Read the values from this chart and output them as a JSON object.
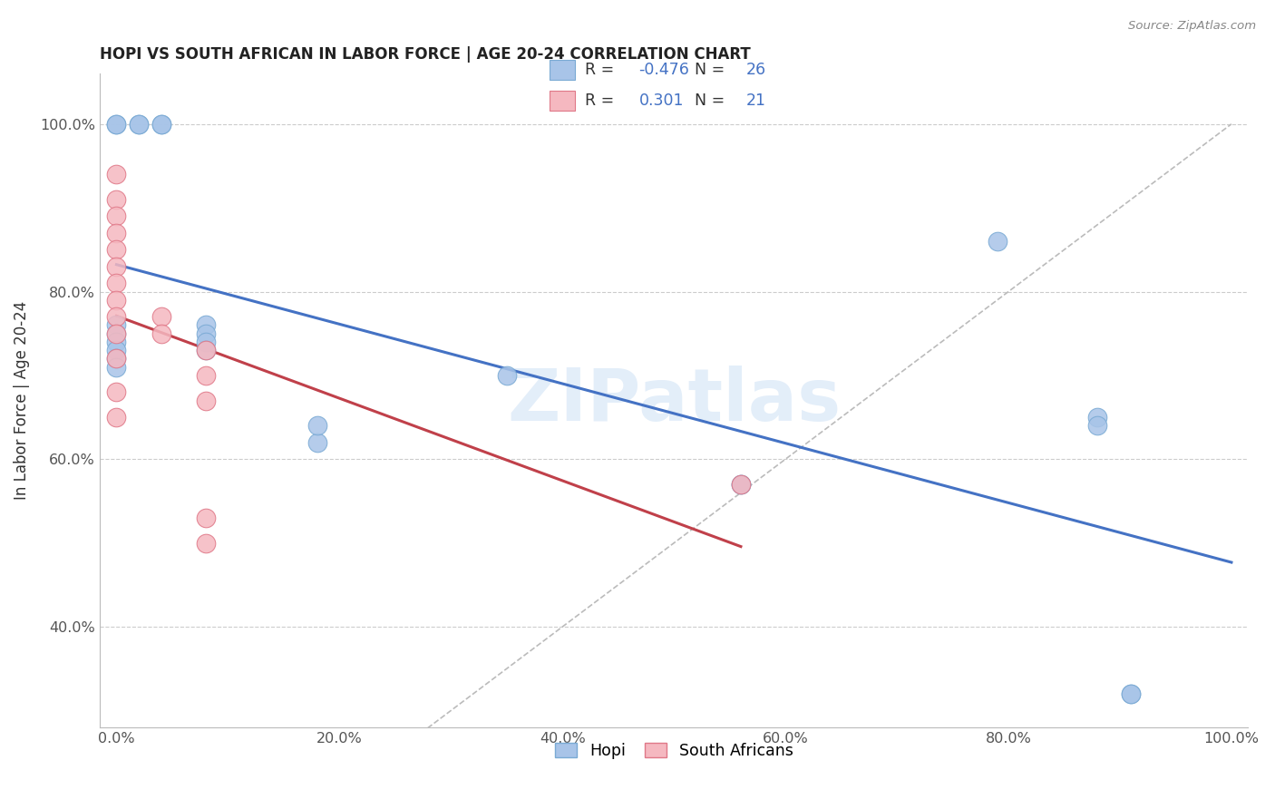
{
  "title": "HOPI VS SOUTH AFRICAN IN LABOR FORCE | AGE 20-24 CORRELATION CHART",
  "source": "Source: ZipAtlas.com",
  "ylabel": "In Labor Force | Age 20-24",
  "xlim": [
    -0.015,
    1.015
  ],
  "ylim": [
    0.28,
    1.06
  ],
  "xticks": [
    0.0,
    0.1,
    0.2,
    0.3,
    0.4,
    0.5,
    0.6,
    0.7,
    0.8,
    0.9,
    1.0
  ],
  "yticks": [
    0.4,
    0.6,
    0.8,
    1.0
  ],
  "xtick_labels": [
    "0.0%",
    "",
    "20.0%",
    "",
    "40.0%",
    "",
    "60.0%",
    "",
    "80.0%",
    "",
    "100.0%"
  ],
  "ytick_labels": [
    "40.0%",
    "60.0%",
    "80.0%",
    "100.0%"
  ],
  "hopi_color": "#a8c4e8",
  "sa_color": "#f5b8c0",
  "hopi_edge": "#7aaad4",
  "sa_edge": "#e07888",
  "trend_hopi_color": "#4472c4",
  "trend_sa_color": "#c0404a",
  "hopi_R": "-0.476",
  "hopi_N": "26",
  "sa_R": "0.301",
  "sa_N": "21",
  "hopi_x": [
    0.0,
    0.0,
    0.02,
    0.02,
    0.04,
    0.04,
    0.08,
    0.08,
    0.08,
    0.08,
    0.0,
    0.0,
    0.0,
    0.0,
    0.0,
    0.0,
    0.56,
    0.56,
    0.79,
    0.88,
    0.88,
    0.91,
    0.91,
    0.35,
    0.18,
    0.18
  ],
  "hopi_y": [
    1.0,
    1.0,
    1.0,
    1.0,
    1.0,
    1.0,
    0.76,
    0.75,
    0.74,
    0.73,
    0.76,
    0.75,
    0.74,
    0.73,
    0.72,
    0.71,
    0.57,
    0.57,
    0.86,
    0.65,
    0.64,
    0.32,
    0.32,
    0.7,
    0.62,
    0.64
  ],
  "sa_x": [
    0.0,
    0.0,
    0.0,
    0.0,
    0.0,
    0.0,
    0.0,
    0.0,
    0.0,
    0.0,
    0.0,
    0.0,
    0.0,
    0.04,
    0.04,
    0.08,
    0.08,
    0.08,
    0.08,
    0.56,
    0.08
  ],
  "sa_y": [
    0.94,
    0.91,
    0.89,
    0.87,
    0.85,
    0.83,
    0.81,
    0.79,
    0.77,
    0.75,
    0.72,
    0.68,
    0.65,
    0.77,
    0.75,
    0.7,
    0.67,
    0.53,
    0.5,
    0.57,
    0.73
  ],
  "watermark": "ZIPatlas",
  "identity_line": true
}
